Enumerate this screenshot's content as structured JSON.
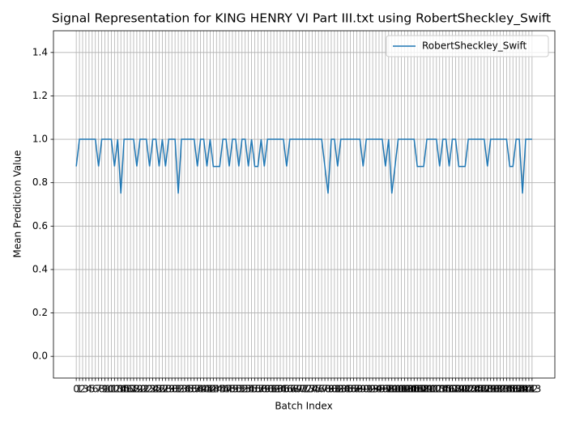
{
  "chart_data": {
    "type": "line",
    "title": "Signal Representation for KING HENRY VI Part III.txt using RobertSheckley_Swift",
    "x_label": "Batch Index",
    "y_label": "Mean Prediction Value",
    "categories": [
      "0",
      "1",
      "2",
      "3",
      "4",
      "5",
      "6",
      "7",
      "8",
      "9",
      "10",
      "11",
      "12",
      "13",
      "14",
      "15",
      "16",
      "17",
      "18",
      "19",
      "20",
      "21",
      "22",
      "23",
      "24",
      "25",
      "26",
      "27",
      "28",
      "29",
      "30",
      "31",
      "32",
      "33",
      "34",
      "35",
      "36",
      "37",
      "38",
      "39",
      "40",
      "41",
      "42",
      "43",
      "44",
      "45",
      "46",
      "47",
      "48",
      "49",
      "50",
      "51",
      "52",
      "53",
      "54",
      "55",
      "56",
      "57",
      "58",
      "59",
      "60",
      "61",
      "62",
      "63",
      "64",
      "65",
      "66",
      "67",
      "68",
      "69",
      "70",
      "71",
      "72",
      "73",
      "74",
      "75",
      "76",
      "77",
      "78",
      "79",
      "80",
      "81",
      "82",
      "83",
      "84",
      "85",
      "86",
      "87",
      "88",
      "89",
      "90",
      "91",
      "92",
      "93",
      "94",
      "95",
      "96",
      "97",
      "98",
      "99",
      "100",
      "101",
      "102",
      "103",
      "104",
      "105",
      "106",
      "107",
      "108",
      "109",
      "110",
      "111",
      "112",
      "113",
      "114",
      "115",
      "116",
      "117",
      "118",
      "119",
      "120",
      "121",
      "122",
      "123",
      "124",
      "125",
      "126",
      "127",
      "128",
      "129",
      "130",
      "131",
      "132",
      "133",
      "134",
      "135",
      "136",
      "137",
      "138",
      "139",
      "140",
      "141",
      "142",
      "143"
    ],
    "series": [
      {
        "name": "RobertSheckley_Swift",
        "color": "#1f77b4",
        "values": [
          0.875,
          1,
          1,
          1,
          1,
          1,
          1,
          0.875,
          1,
          1,
          1,
          1,
          0.875,
          1,
          0.75,
          1,
          1,
          1,
          1,
          0.875,
          1,
          1,
          1,
          0.875,
          1,
          1,
          0.875,
          1,
          0.875,
          1,
          1,
          1,
          0.75,
          1,
          1,
          1,
          1,
          1,
          0.875,
          1,
          1,
          0.875,
          1,
          0.875,
          0.875,
          0.875,
          1,
          1,
          0.875,
          1,
          1,
          0.875,
          1,
          1,
          0.875,
          1,
          0.875,
          0.875,
          1,
          0.875,
          1,
          1,
          1,
          1,
          1,
          1,
          0.875,
          1,
          1,
          1,
          1,
          1,
          1,
          1,
          1,
          1,
          1,
          1,
          0.875,
          0.75,
          1,
          1,
          0.875,
          1,
          1,
          1,
          1,
          1,
          1,
          1,
          0.875,
          1,
          1,
          1,
          1,
          1,
          1,
          0.875,
          1,
          0.75,
          0.875,
          1,
          1,
          1,
          1,
          1,
          1,
          0.875,
          0.875,
          0.875,
          1,
          1,
          1,
          1,
          0.875,
          1,
          1,
          0.875,
          1,
          1,
          0.875,
          0.875,
          0.875,
          1,
          1,
          1,
          1,
          1,
          1,
          0.875,
          1,
          1,
          1,
          1,
          1,
          1,
          0.875,
          0.875,
          1,
          1,
          0.75,
          1,
          1,
          1
        ]
      }
    ],
    "ylim": [
      -0.1,
      1.5
    ],
    "yticks": [
      {
        "value": 0,
        "label": "0.0"
      },
      {
        "value": 0.2,
        "label": "0.2"
      },
      {
        "value": 0.4,
        "label": "0.4"
      },
      {
        "value": 0.6,
        "label": "0.6"
      },
      {
        "value": 0.8,
        "label": "0.8"
      },
      {
        "value": 1,
        "label": "1.0"
      },
      {
        "value": 1.2,
        "label": "1.2"
      },
      {
        "value": 1.4,
        "label": "1.4"
      }
    ],
    "grid": true,
    "legend": "upper right"
  }
}
